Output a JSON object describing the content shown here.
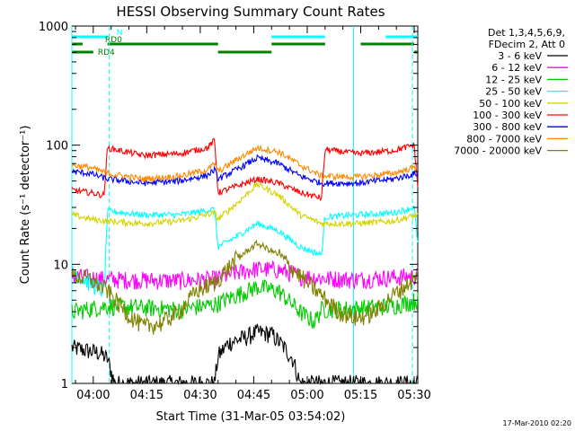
{
  "chart_data": {
    "type": "line",
    "title": "HESSI Observing Summary Count Rates",
    "xlabel": "Start Time (31-Mar-05 03:54:02)",
    "ylabel": "Count Rate (s⁻¹ detector⁻¹)",
    "yscale": "log",
    "ylim": [
      1,
      1000
    ],
    "xlim": [
      0,
      97
    ],
    "x_unit": "minutes after 03:54:02",
    "x_ticks": [
      {
        "x": 6,
        "label": "04:00"
      },
      {
        "x": 21,
        "label": "04:15"
      },
      {
        "x": 36,
        "label": "04:30"
      },
      {
        "x": 51,
        "label": "04:45"
      },
      {
        "x": 66,
        "label": "05:00"
      },
      {
        "x": 81,
        "label": "05:15"
      },
      {
        "x": 96,
        "label": "05:30"
      }
    ],
    "y_ticks": [
      {
        "y": 1,
        "label": "1"
      },
      {
        "y": 10,
        "label": "10"
      },
      {
        "y": 100,
        "label": "100"
      },
      {
        "y": 1000,
        "label": "1000"
      }
    ],
    "legend": {
      "placement": "right",
      "header": [
        "Det 1,3,4,5,6,9,",
        "FDecim 2, Att 0"
      ]
    },
    "footer_date": "17-Mar-2010 02:20",
    "flags": [
      {
        "label": "N",
        "color": "#00ffff",
        "segments": [
          [
            0,
            10
          ],
          [
            56,
            71
          ],
          [
            88,
            97
          ]
        ]
      },
      {
        "label": "RD0",
        "color": "#008000",
        "segments": [
          [
            0,
            3
          ],
          [
            10,
            41
          ],
          [
            56,
            71
          ],
          [
            81,
            96
          ]
        ]
      },
      {
        "label": "RD4",
        "color": "#008000",
        "segments": [
          [
            0,
            6
          ],
          [
            41,
            56
          ],
          [
            96,
            97
          ]
        ]
      }
    ],
    "markers": {
      "solid": [
        0,
        79
      ],
      "dashed": [
        10.5,
        95.5
      ]
    },
    "series": [
      {
        "name": "3 - 6 keV",
        "color": "#000000",
        "points": [
          [
            0,
            2
          ],
          [
            4,
            1.9
          ],
          [
            8,
            1.8
          ],
          [
            10,
            1.6
          ],
          [
            12,
            1
          ],
          [
            40,
            1
          ],
          [
            41,
            1.7
          ],
          [
            44,
            2.2
          ],
          [
            48,
            2.4
          ],
          [
            52,
            2.7
          ],
          [
            56,
            2.6
          ],
          [
            59,
            2.1
          ],
          [
            62,
            1.6
          ],
          [
            64,
            1
          ],
          [
            97,
            1
          ]
        ]
      },
      {
        "name": "6 - 12 keV",
        "color": "#ff00ff",
        "points": [
          [
            0,
            8
          ],
          [
            10,
            7.5
          ],
          [
            30,
            7.3
          ],
          [
            40,
            7.5
          ],
          [
            46,
            8.5
          ],
          [
            52,
            9.2
          ],
          [
            58,
            9
          ],
          [
            64,
            8
          ],
          [
            72,
            7.6
          ],
          [
            80,
            7.5
          ],
          [
            90,
            7.8
          ],
          [
            97,
            8
          ]
        ]
      },
      {
        "name": "12 - 25 keV",
        "color": "#00cc00",
        "points": [
          [
            0,
            4
          ],
          [
            10,
            4.5
          ],
          [
            30,
            4.2
          ],
          [
            40,
            4.6
          ],
          [
            46,
            5.5
          ],
          [
            52,
            6.5
          ],
          [
            58,
            6
          ],
          [
            64,
            4
          ],
          [
            68,
            3.3
          ],
          [
            70,
            4.2
          ],
          [
            80,
            4.3
          ],
          [
            90,
            4.5
          ],
          [
            97,
            5
          ]
        ]
      },
      {
        "name": "25 - 50 keV",
        "color": "#00ffff",
        "points": [
          [
            0,
            9
          ],
          [
            5,
            7
          ],
          [
            9,
            6
          ],
          [
            10,
            28
          ],
          [
            20,
            26
          ],
          [
            30,
            26
          ],
          [
            40,
            29
          ],
          [
            41,
            14
          ],
          [
            46,
            17
          ],
          [
            52,
            22
          ],
          [
            58,
            19
          ],
          [
            64,
            14
          ],
          [
            70,
            12
          ],
          [
            71,
            25
          ],
          [
            80,
            26
          ],
          [
            90,
            27
          ],
          [
            96,
            30
          ],
          [
            97,
            15
          ]
        ]
      },
      {
        "name": "50 - 100 keV",
        "color": "#d4d400",
        "points": [
          [
            0,
            26
          ],
          [
            5,
            24
          ],
          [
            10,
            23
          ],
          [
            20,
            22
          ],
          [
            30,
            23
          ],
          [
            40,
            27
          ],
          [
            41,
            24
          ],
          [
            46,
            32
          ],
          [
            52,
            47
          ],
          [
            58,
            38
          ],
          [
            64,
            26
          ],
          [
            70,
            22
          ],
          [
            80,
            22
          ],
          [
            90,
            23
          ],
          [
            97,
            26
          ]
        ]
      },
      {
        "name": "100 - 300 keV",
        "color": "#ff0000",
        "points": [
          [
            0,
            42
          ],
          [
            5,
            40
          ],
          [
            9,
            38
          ],
          [
            10,
            95
          ],
          [
            20,
            82
          ],
          [
            30,
            85
          ],
          [
            38,
            95
          ],
          [
            40,
            110
          ],
          [
            41,
            40
          ],
          [
            46,
            45
          ],
          [
            52,
            52
          ],
          [
            58,
            48
          ],
          [
            64,
            40
          ],
          [
            70,
            36
          ],
          [
            71,
            92
          ],
          [
            80,
            85
          ],
          [
            90,
            90
          ],
          [
            96,
            100
          ],
          [
            97,
            45
          ]
        ]
      },
      {
        "name": "300 - 800 keV",
        "color": "#0000ff",
        "points": [
          [
            0,
            60
          ],
          [
            5,
            58
          ],
          [
            10,
            52
          ],
          [
            20,
            48
          ],
          [
            30,
            50
          ],
          [
            38,
            56
          ],
          [
            40,
            62
          ],
          [
            41,
            52
          ],
          [
            46,
            62
          ],
          [
            52,
            78
          ],
          [
            58,
            70
          ],
          [
            64,
            55
          ],
          [
            70,
            48
          ],
          [
            80,
            48
          ],
          [
            90,
            52
          ],
          [
            97,
            58
          ]
        ]
      },
      {
        "name": "800 - 7000 keV",
        "color": "#ff8800",
        "points": [
          [
            0,
            68
          ],
          [
            5,
            65
          ],
          [
            10,
            58
          ],
          [
            20,
            52
          ],
          [
            30,
            55
          ],
          [
            38,
            62
          ],
          [
            40,
            70
          ],
          [
            41,
            60
          ],
          [
            46,
            75
          ],
          [
            52,
            95
          ],
          [
            58,
            88
          ],
          [
            64,
            68
          ],
          [
            70,
            55
          ],
          [
            80,
            54
          ],
          [
            90,
            58
          ],
          [
            97,
            66
          ]
        ]
      },
      {
        "name": "7000 - 20000 keV",
        "color": "#808000",
        "points": [
          [
            0,
            8
          ],
          [
            5,
            7.5
          ],
          [
            10,
            6
          ],
          [
            15,
            4
          ],
          [
            20,
            3
          ],
          [
            25,
            3.2
          ],
          [
            30,
            4
          ],
          [
            35,
            6
          ],
          [
            40,
            7
          ],
          [
            41,
            7.5
          ],
          [
            46,
            11
          ],
          [
            52,
            15
          ],
          [
            58,
            12
          ],
          [
            64,
            8
          ],
          [
            70,
            5.5
          ],
          [
            75,
            4
          ],
          [
            80,
            3.5
          ],
          [
            85,
            4
          ],
          [
            90,
            5.5
          ],
          [
            97,
            8
          ]
        ]
      }
    ]
  }
}
